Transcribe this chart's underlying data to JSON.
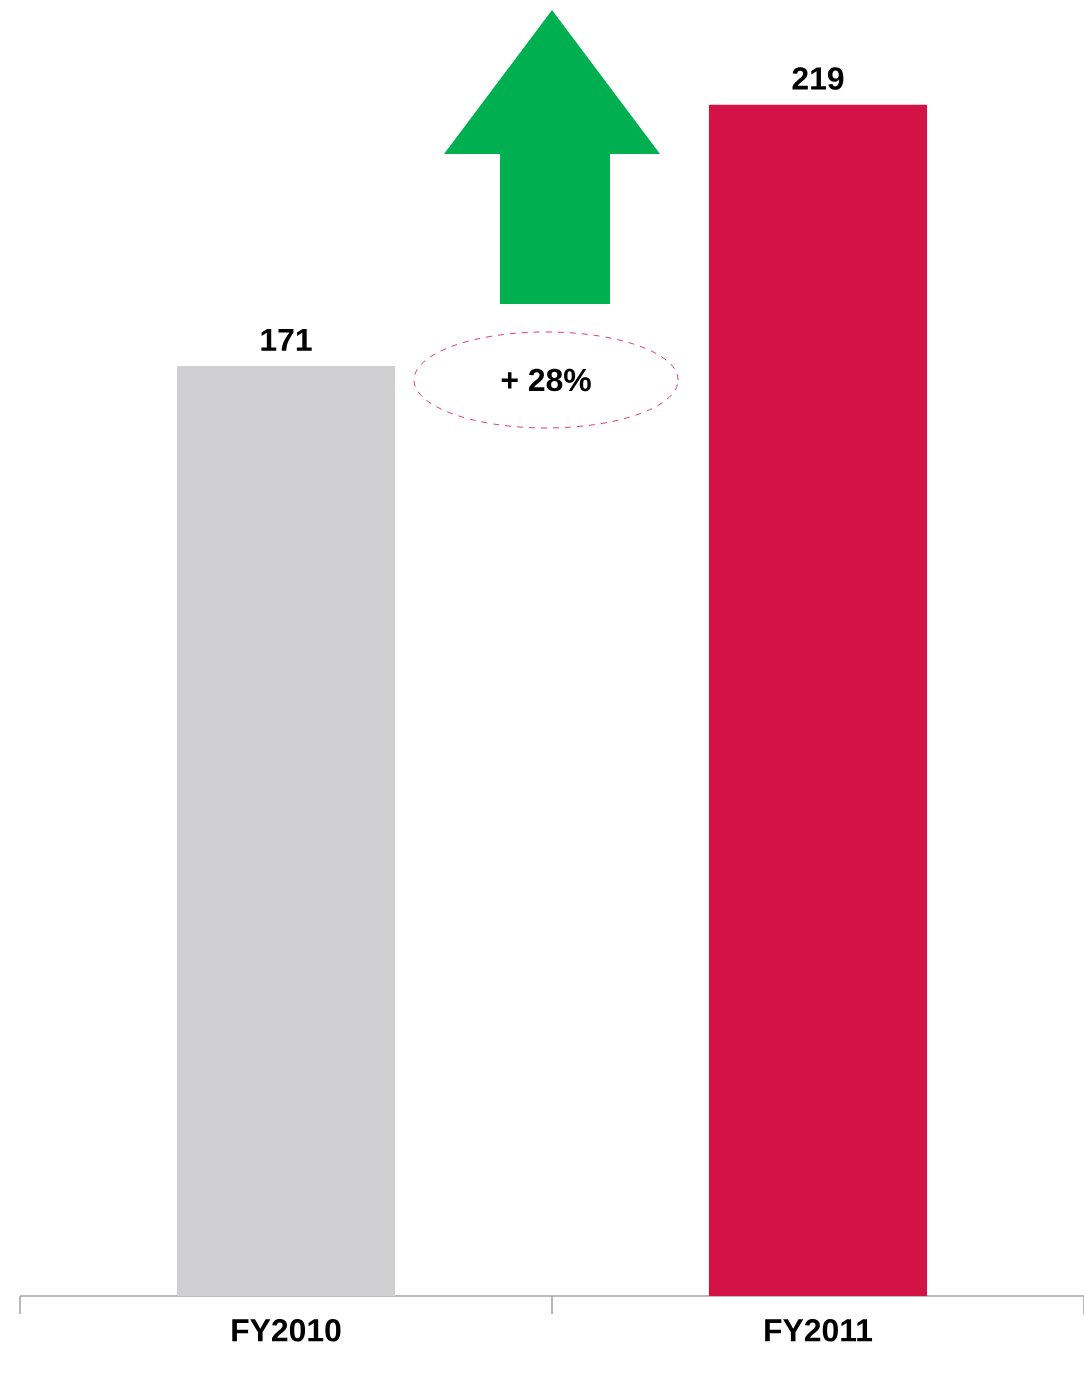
{
  "chart_data": {
    "type": "bar",
    "categories": [
      "FY2010",
      "FY2011"
    ],
    "values": [
      171,
      219
    ],
    "colors": [
      "#d0d0d2",
      "#d31245"
    ],
    "data_labels": true,
    "annotations": [
      "+ 28%"
    ]
  }
}
